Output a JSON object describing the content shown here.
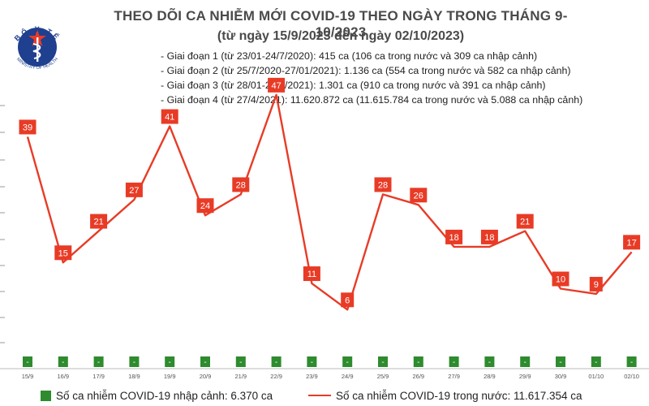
{
  "header": {
    "logo_top": "BỘ Y TẾ",
    "logo_bottom": "MINISTRY OF HEALTH",
    "title": "THEO DÕI CA NHIỄM MỚI COVID-19 THEO NGÀY TRONG THÁNG 9-10/2023",
    "subtitle": "(từ ngày 15/9/2023 đến ngày 02/10/2023)"
  },
  "stages": [
    "- Giai đoạn 1 (từ 23/01-24/7/2020): 415 ca (106 ca trong nước và 309 ca nhập cảnh)",
    "- Giai đoạn 2 (từ 25/7/2020-27/01/2021): 1.136 ca (554 ca trong nước và 582 ca nhập cảnh)",
    "- Giai đoạn 3 (từ 28/01-26/4/2021): 1.301 ca (910 ca trong nước và 391 ca nhập cảnh)",
    "- Giai đoạn 4 (từ 27/4/2021): 11.620.872 ca (11.615.784 ca trong nước và 5.088 ca nhập cảnh)"
  ],
  "legend": {
    "imported": "Số ca nhiễm COVID-19 nhập cảnh: 6.370 ca",
    "domestic": "Số ca nhiễm COVID-19 trong nước: 11.617.354 ca"
  },
  "colors": {
    "line": "#e83b26",
    "bar": "#2e8b2e",
    "title": "#4a4a4a",
    "logo": "#1f3f8f"
  },
  "chart_data": {
    "type": "line",
    "categories": [
      "15/9",
      "16/9",
      "17/9",
      "18/9",
      "19/9",
      "20/9",
      "21/9",
      "22/9",
      "23/9",
      "24/9",
      "25/9",
      "26/9",
      "27/9",
      "28/9",
      "29/9",
      "30/9",
      "01/10",
      "02/10"
    ],
    "series": [
      {
        "name": "Số ca nhiễm COVID-19 trong nước: 11.617.354 ca",
        "values": [
          39,
          15,
          21,
          27,
          41,
          24,
          28,
          47,
          11,
          6,
          28,
          26,
          18,
          18,
          21,
          10,
          9,
          17
        ],
        "labels": [
          "39",
          "15",
          "21",
          "27",
          "41",
          "24",
          "28",
          "47",
          "11",
          "6",
          "28",
          "26",
          "18",
          "18",
          "21",
          "10",
          "9",
          "17"
        ]
      },
      {
        "name": "Số ca nhiễm COVID-19 nhập cảnh: 6.370 ca",
        "values": [
          0,
          0,
          0,
          0,
          0,
          0,
          0,
          0,
          0,
          0,
          0,
          0,
          0,
          0,
          0,
          0,
          0,
          0
        ],
        "labels": [
          "-",
          "-",
          "-",
          "-",
          "-",
          "-",
          "-",
          "-",
          "-",
          "-",
          "-",
          "-",
          "-",
          "-",
          "-",
          "-",
          "-",
          "-"
        ]
      }
    ],
    "ylim": [
      0,
      50
    ],
    "grid": false,
    "legend_position": "bottom"
  }
}
